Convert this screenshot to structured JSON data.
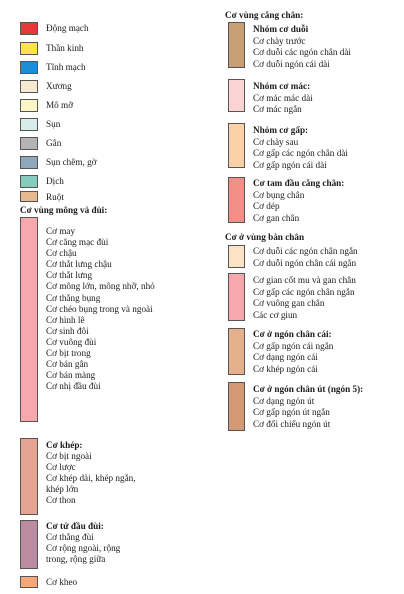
{
  "legend": [
    {
      "label": "Động mạch",
      "color": "#e8373a"
    },
    {
      "label": "Thần kinh",
      "color": "#fde34a"
    },
    {
      "label": "Tĩnh mạch",
      "color": "#1f8dd6"
    },
    {
      "label": "Xương",
      "color": "#f6e9d2"
    },
    {
      "label": "Mô mỡ",
      "color": "#fbf5c7"
    },
    {
      "label": "Sụn",
      "color": "#d8edea"
    },
    {
      "label": "Gân",
      "color": "#b3b4b6"
    },
    {
      "label": "Sụn chêm, gờ",
      "color": "#8da8bc"
    },
    {
      "label": "Dịch",
      "color": "#85cbbe"
    },
    {
      "label": "Ruột",
      "color": "#e6b98e"
    }
  ],
  "left": {
    "hip_title": "Cơ vùng mông và đùi:",
    "hip_color": "#f7a8ae",
    "hip_items": [
      "Cơ may",
      "Cơ căng mạc đùi",
      "Cơ chậu",
      "Cơ thắt lưng chậu",
      "Cơ thắt lưng",
      "Cơ mông lớn, mông nhỡ, nhỏ",
      "Cơ thắng bụng",
      "Cơ chéo bụng trong và ngoài",
      "Cơ hình lê",
      "Cơ sinh đôi",
      "Cơ vuông đùi",
      "Cơ bịt trong",
      "Cơ bán gân",
      "Cơ bán màng",
      "Cơ nhị đầu đùi"
    ],
    "adductor_title": "Cơ khép:",
    "adductor_color": "#e6a592",
    "adductor_items": [
      "Cơ bịt ngoài",
      "Cơ lược",
      "Cơ khép dài, khép ngắn,",
      "khép lớn",
      "Cơ thon"
    ],
    "quad_title": "Cơ tứ đầu đùi:",
    "quad_color": "#bb8b9f",
    "quad_items": [
      "Cơ thẳng đùi",
      "Cơ rộng ngoài, rộng",
      "trong, rộng giữa"
    ],
    "knee_label": "Cơ kheo",
    "knee_color": "#f4a878"
  },
  "right": {
    "leg_title": "Cơ vùng cẳng chân:",
    "groups": [
      {
        "title": "Nhóm cơ duỗi",
        "color": "#c99f75",
        "items": [
          "Cơ chày trước",
          "Cơ duỗi các ngón chân dài",
          "Cơ duỗi ngón cái dài"
        ]
      },
      {
        "title": "Nhóm cơ mác:",
        "color": "#fcd4d4",
        "items": [
          "Cơ mác mác dài",
          "Cơ mác ngắn"
        ]
      },
      {
        "title": "Nhóm cơ gấp:",
        "color": "#fdd1a8",
        "items": [
          "Cơ chày sau",
          "Cơ gấp các ngón chân dài",
          "Cơ gấp ngón cái dài"
        ]
      },
      {
        "title": "Cơ tam đầu cẳng chân:",
        "color": "#f28f86",
        "items": [
          "Cơ bụng chân",
          "Cơ dép",
          "Cơ gan chân"
        ]
      }
    ],
    "foot_title": "Cơ ở vùng bàn chân",
    "foot_groups": [
      {
        "color": "#fde3c6",
        "items": [
          "Cơ duỗi các ngón chân ngắn",
          "Cơ duỗi ngón chân cái ngắn"
        ]
      },
      {
        "color": "#f7a8ae",
        "items": [
          "Cơ gian cốt mu và gan chân",
          "Cơ gấp các ngón chân ngắn",
          "Cơ vuông gan chân",
          "Các cơ giun"
        ]
      },
      {
        "title": "Cơ ở ngón chân cái:",
        "color": "#e6b08d",
        "items": [
          "Cơ gấp ngón cái ngắn",
          "Cơ dạng ngón  cái",
          "Cơ khép ngón  cái"
        ]
      },
      {
        "title": "Cơ ở ngón chân út (ngón 5):",
        "color": "#d49a75",
        "items": [
          "Cơ dạng ngón út",
          "Cơ gấp ngón út ngắn",
          "Cơ đối chiếu ngón út"
        ]
      }
    ]
  }
}
